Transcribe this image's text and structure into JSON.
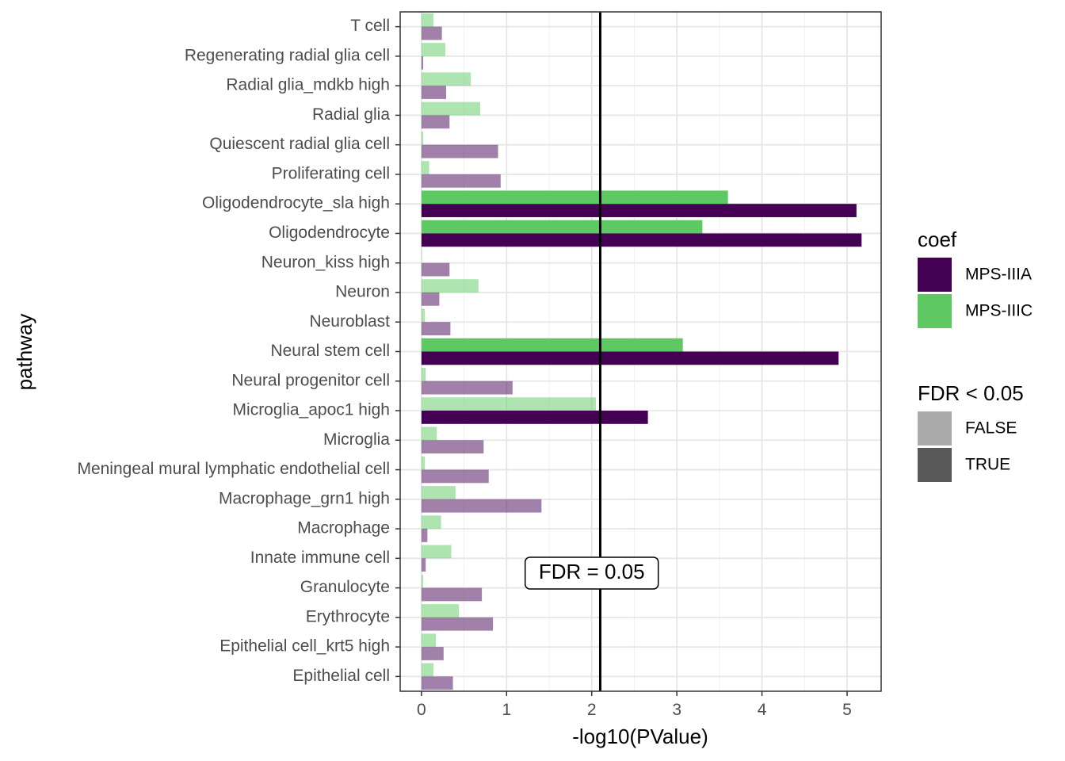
{
  "chart_data": {
    "type": "bar",
    "orientation": "horizontal",
    "xlabel": "-log10(PValue)",
    "ylabel": "pathway",
    "xlim": [
      -0.25,
      5.4
    ],
    "xticks": [
      0,
      1,
      2,
      3,
      4,
      5
    ],
    "grid": true,
    "threshold": {
      "value": 2.1,
      "label": "FDR = 0.05",
      "label_x": 2.0,
      "label_row": "Granulocyte"
    },
    "colors": {
      "MPS-IIIA": "#440154",
      "MPS-IIIC": "#5ec962"
    },
    "alpha": {
      "TRUE": 1.0,
      "FALSE": 0.5
    },
    "categories": [
      "T cell",
      "Regenerating radial glia cell",
      "Radial glia_mdkb high",
      "Radial glia",
      "Quiescent radial glia cell",
      "Proliferating cell",
      "Oligodendrocyte_sla high",
      "Oligodendrocyte",
      "Neuron_kiss high",
      "Neuron",
      "Neuroblast",
      "Neural stem cell",
      "Neural progenitor cell",
      "Microglia_apoc1 high",
      "Microglia",
      "Meningeal mural lymphatic endothelial cell",
      "Macrophage_grn1 high",
      "Macrophage",
      "Innate immune cell",
      "Granulocyte",
      "Erythrocyte",
      "Epithelial cell_krt5 high",
      "Epithelial cell"
    ],
    "series": [
      {
        "name": "MPS-IIIC",
        "values": [
          0.14,
          0.28,
          0.58,
          0.69,
          0.02,
          0.09,
          3.6,
          3.3,
          0.0,
          0.67,
          0.04,
          3.07,
          0.05,
          2.05,
          0.18,
          0.04,
          0.4,
          0.23,
          0.35,
          0.02,
          0.44,
          0.17,
          0.14
        ],
        "significant": [
          false,
          false,
          false,
          false,
          false,
          false,
          true,
          true,
          false,
          false,
          false,
          true,
          false,
          false,
          false,
          false,
          false,
          false,
          false,
          false,
          false,
          false,
          false
        ]
      },
      {
        "name": "MPS-IIIA",
        "values": [
          0.24,
          0.02,
          0.29,
          0.33,
          0.9,
          0.93,
          5.11,
          5.17,
          0.33,
          0.21,
          0.34,
          4.9,
          1.07,
          2.66,
          0.73,
          0.79,
          1.41,
          0.07,
          0.05,
          0.71,
          0.84,
          0.26,
          0.37
        ],
        "significant": [
          false,
          false,
          false,
          false,
          false,
          false,
          true,
          true,
          false,
          false,
          false,
          true,
          false,
          true,
          false,
          false,
          false,
          false,
          false,
          false,
          false,
          false,
          false
        ]
      }
    ],
    "legends": [
      {
        "title": "coef",
        "entries": [
          {
            "label": "MPS-IIIA",
            "color": "#440154"
          },
          {
            "label": "MPS-IIIC",
            "color": "#5ec962"
          }
        ]
      },
      {
        "title": "FDR < 0.05",
        "entries": [
          {
            "label": "FALSE",
            "color": "#ababab"
          },
          {
            "label": "TRUE",
            "color": "#595959"
          }
        ]
      }
    ],
    "legend_position": "right"
  }
}
